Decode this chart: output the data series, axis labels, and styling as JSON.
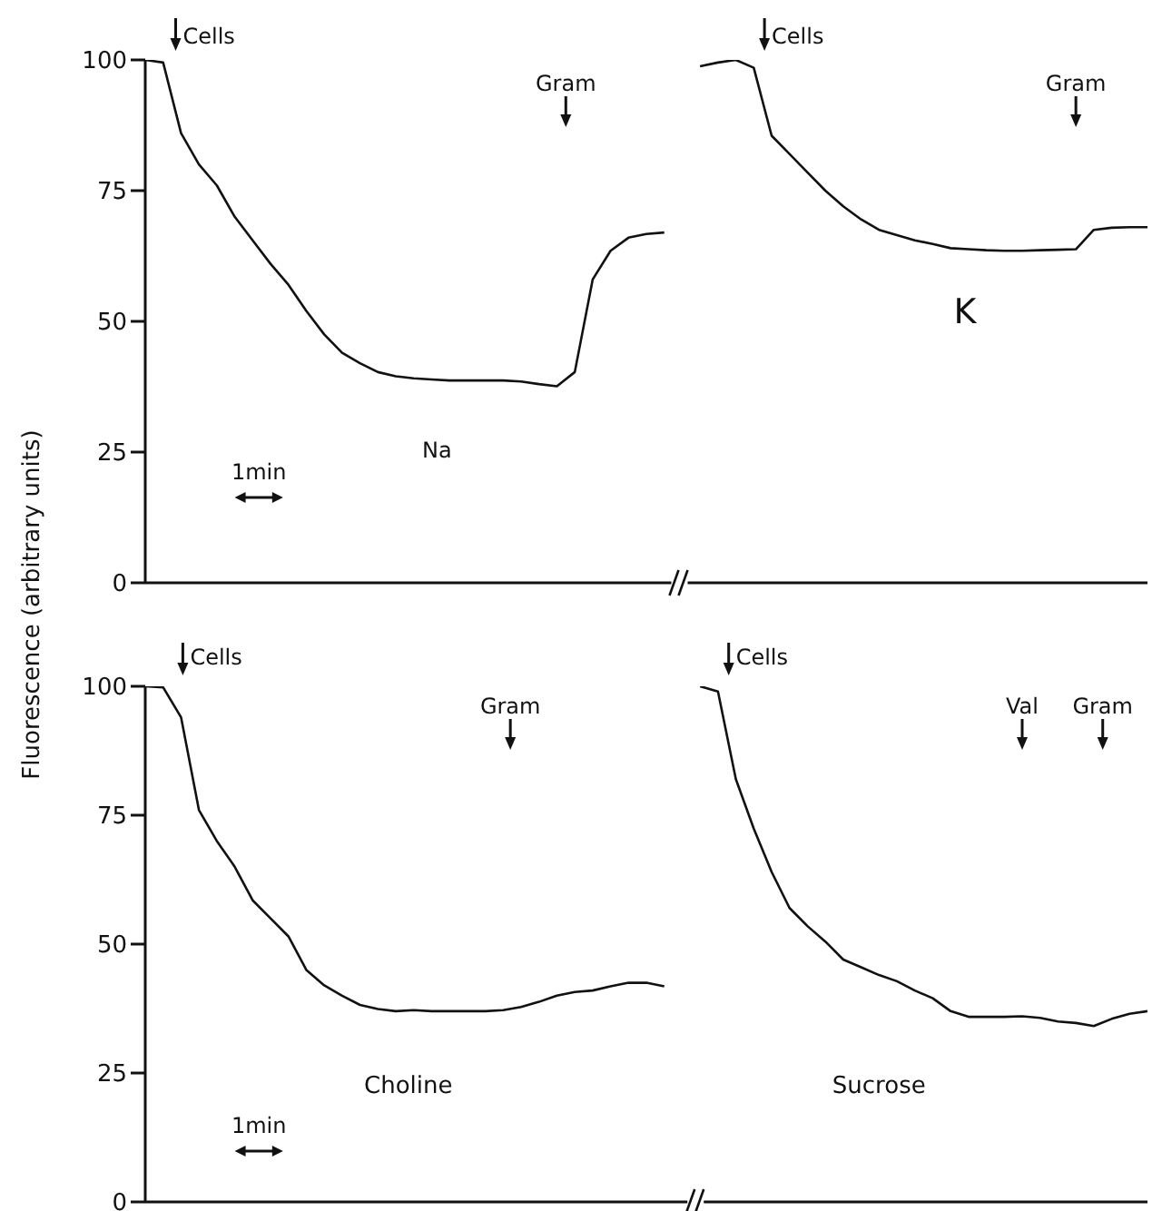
{
  "chart_data": [
    {
      "type": "line",
      "ylabel": "Fluorescence (arbitrary units)",
      "categories": [
        null,
        null,
        null,
        null,
        null,
        null,
        null,
        null,
        null,
        null,
        null,
        null,
        null,
        null,
        null,
        null,
        null,
        null,
        null,
        null,
        null,
        null,
        null,
        null,
        null,
        null,
        null,
        null,
        null,
        null,
        null,
        null,
        null,
        null,
        null,
        null,
        null,
        null,
        null,
        null,
        null,
        null,
        null,
        null,
        null,
        null,
        null,
        null,
        null,
        null,
        null,
        null,
        null,
        null,
        null,
        null,
        null
      ],
      "series": [
        {
          "name": "Na",
          "color": "#111111",
          "values": [
            100,
            99.5,
            86,
            80,
            76,
            70,
            65.5,
            61,
            57,
            52,
            47.5,
            44,
            42,
            40.3,
            39.5,
            39.1,
            38.9,
            38.7,
            38.7,
            38.7,
            38.7,
            38.5,
            38,
            37.6,
            40.3,
            58,
            63.5,
            66,
            66.7,
            67,
            null,
            null,
            null,
            null,
            null,
            null,
            null,
            null,
            null,
            null,
            null,
            null,
            null,
            null,
            null,
            null,
            null,
            null,
            null,
            null,
            null,
            null,
            null,
            null,
            null,
            null,
            null
          ]
        },
        {
          "name": "K",
          "color": "#111111",
          "values": [
            null,
            null,
            null,
            null,
            null,
            null,
            null,
            null,
            null,
            null,
            null,
            null,
            null,
            null,
            null,
            null,
            null,
            null,
            null,
            null,
            null,
            null,
            null,
            null,
            null,
            null,
            null,
            null,
            null,
            null,
            null,
            98.8,
            99.5,
            100,
            98.5,
            85.5,
            82,
            78.5,
            75,
            72,
            69.5,
            67.5,
            66.5,
            65.5,
            64.8,
            64,
            63.8,
            63.6,
            63.5,
            63.5,
            63.6,
            63.7,
            63.8,
            67.5,
            67.9,
            68,
            68
          ]
        }
      ],
      "ylim": [
        0,
        100
      ],
      "yticks": [
        0,
        25,
        50,
        75,
        100
      ],
      "tick_labels": "y",
      "annotations": [
        "Cells",
        "Gram",
        "Cells",
        "Gram",
        "1min"
      ]
    },
    {
      "type": "line",
      "categories": [
        null,
        null,
        null,
        null,
        null,
        null,
        null,
        null,
        null,
        null,
        null,
        null,
        null,
        null,
        null,
        null,
        null,
        null,
        null,
        null,
        null,
        null,
        null,
        null,
        null,
        null,
        null,
        null,
        null,
        null,
        null,
        null,
        null,
        null,
        null,
        null,
        null,
        null,
        null,
        null,
        null,
        null,
        null,
        null,
        null,
        null,
        null,
        null,
        null,
        null,
        null,
        null,
        null,
        null,
        null,
        null,
        null
      ],
      "series": [
        {
          "name": "Choline",
          "color": "#111111",
          "values": [
            100,
            99.8,
            94,
            76,
            70,
            65,
            58.5,
            55,
            51.5,
            45,
            42,
            40,
            38.2,
            37.4,
            37,
            37.2,
            37,
            37,
            37,
            37,
            37.2,
            37.8,
            38.8,
            40,
            40.7,
            41,
            41.8,
            42.5,
            42.5,
            41.8,
            null,
            null,
            null,
            null,
            null,
            null,
            null,
            null,
            null,
            null,
            null,
            null,
            null,
            null,
            null,
            null,
            null,
            null,
            null,
            null,
            null,
            null,
            null,
            null,
            null,
            null,
            null
          ]
        },
        {
          "name": "Sucrose",
          "color": "#111111",
          "values": [
            null,
            null,
            null,
            null,
            null,
            null,
            null,
            null,
            null,
            null,
            null,
            null,
            null,
            null,
            null,
            null,
            null,
            null,
            null,
            null,
            null,
            null,
            null,
            null,
            null,
            null,
            null,
            null,
            null,
            null,
            null,
            100,
            99,
            82,
            72.4,
            64,
            57,
            53.5,
            50.5,
            47,
            45.5,
            44,
            42.8,
            41,
            39.5,
            37,
            35.9,
            35.9,
            35.9,
            36,
            35.7,
            35,
            34.7,
            34.1,
            35.5,
            36.5,
            37
          ]
        }
      ],
      "ylim": [
        0,
        100
      ],
      "yticks": [
        0,
        25,
        50,
        75,
        100
      ],
      "tick_labels": "y",
      "annotations": [
        "Cells",
        "Gram",
        "Cells",
        "Val",
        "Gram",
        "1min"
      ]
    }
  ]
}
